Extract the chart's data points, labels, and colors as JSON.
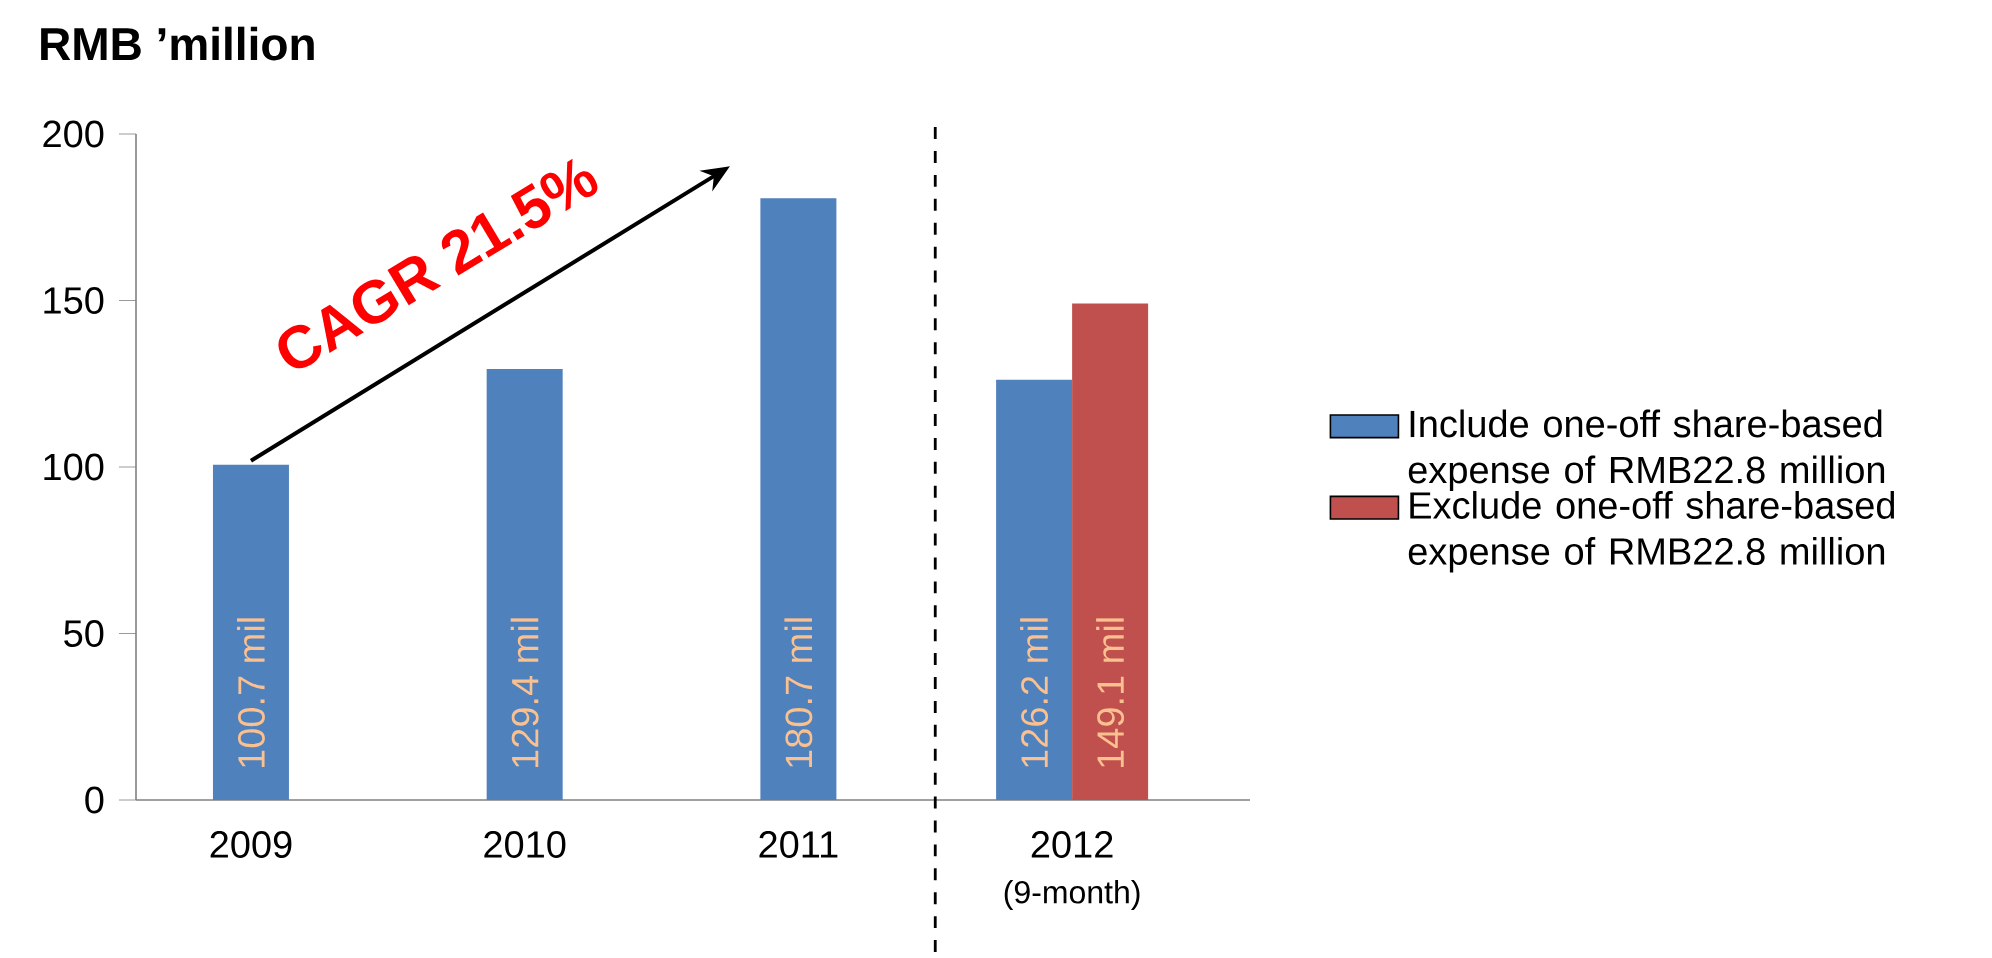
{
  "chart_data": {
    "type": "bar",
    "ylabel": "RMB ’million",
    "categories": [
      "2009",
      "2010",
      "2011",
      "2012"
    ],
    "series": [
      {
        "name": "Include one-off share-based expense of RMB22.8 million",
        "color": "#4f81bd",
        "values": [
          100.7,
          129.4,
          180.7,
          126.2
        ],
        "value_labels": [
          "100.7 mil",
          "129.4 mil",
          "180.7 mil",
          "126.2 mil"
        ]
      },
      {
        "name": "Exclude one-off share-based expense of RMB22.8 million",
        "color": "#c0504d",
        "values": [
          null,
          null,
          null,
          149.1
        ],
        "value_labels": [
          null,
          null,
          null,
          "149.1 mil"
        ]
      }
    ],
    "ylim": [
      0,
      200
    ],
    "yticks": [
      0,
      50,
      100,
      150,
      200
    ],
    "grid": false,
    "legend": "right",
    "annotations": [
      "CAGR 21.5%",
      "(9-month)"
    ]
  }
}
